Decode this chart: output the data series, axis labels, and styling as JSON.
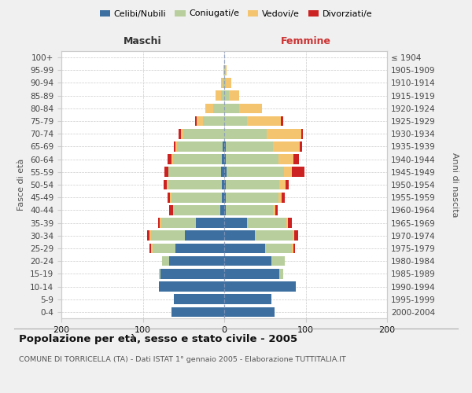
{
  "age_groups": [
    "100+",
    "95-99",
    "90-94",
    "85-89",
    "80-84",
    "75-79",
    "70-74",
    "65-69",
    "60-64",
    "55-59",
    "50-54",
    "45-49",
    "40-44",
    "35-39",
    "30-34",
    "25-29",
    "20-24",
    "15-19",
    "10-14",
    "5-9",
    "0-4"
  ],
  "birth_years": [
    "≤ 1904",
    "1905-1909",
    "1910-1914",
    "1915-1919",
    "1920-1924",
    "1925-1929",
    "1930-1934",
    "1935-1939",
    "1940-1944",
    "1945-1949",
    "1950-1954",
    "1955-1959",
    "1960-1964",
    "1965-1969",
    "1970-1974",
    "1975-1979",
    "1980-1984",
    "1985-1989",
    "1990-1994",
    "1995-1999",
    "2000-2004"
  ],
  "maschi": {
    "celibi": [
      0,
      0,
      0,
      0,
      0,
      0,
      0,
      2,
      3,
      4,
      3,
      3,
      5,
      35,
      48,
      60,
      68,
      78,
      80,
      62,
      65
    ],
    "coniugati": [
      0,
      0,
      2,
      4,
      14,
      26,
      50,
      56,
      60,
      65,
      66,
      62,
      58,
      42,
      42,
      28,
      8,
      2,
      0,
      0,
      0
    ],
    "vedovi": [
      0,
      1,
      2,
      7,
      9,
      8,
      3,
      2,
      2,
      0,
      2,
      2,
      0,
      2,
      2,
      2,
      0,
      0,
      0,
      0,
      0
    ],
    "divorziati": [
      0,
      0,
      0,
      0,
      0,
      2,
      3,
      2,
      5,
      4,
      3,
      3,
      5,
      2,
      3,
      2,
      0,
      0,
      0,
      0,
      0
    ]
  },
  "femmine": {
    "nubili": [
      0,
      0,
      0,
      0,
      0,
      0,
      0,
      2,
      2,
      3,
      2,
      2,
      2,
      28,
      38,
      50,
      58,
      68,
      88,
      58,
      62
    ],
    "coniugate": [
      0,
      1,
      2,
      6,
      18,
      28,
      52,
      58,
      65,
      70,
      66,
      65,
      58,
      48,
      46,
      33,
      16,
      4,
      0,
      0,
      0
    ],
    "vedove": [
      0,
      2,
      7,
      12,
      28,
      42,
      43,
      33,
      18,
      10,
      7,
      4,
      3,
      2,
      2,
      2,
      0,
      0,
      0,
      0,
      0
    ],
    "divorziate": [
      0,
      0,
      0,
      0,
      0,
      2,
      2,
      3,
      7,
      16,
      4,
      3,
      3,
      5,
      5,
      2,
      0,
      0,
      0,
      0,
      0
    ]
  },
  "colors": {
    "celibi_nubili": "#3d6fa0",
    "coniugati": "#b8cf9d",
    "vedovi": "#f5c46e",
    "divorziati": "#cc2222"
  },
  "title": "Popolazione per età, sesso e stato civile - 2005",
  "subtitle": "COMUNE DI TORRICELLA (TA) - Dati ISTAT 1° gennaio 2005 - Elaborazione TUTTITALIA.IT",
  "label_maschi": "Maschi",
  "label_femmine": "Femmine",
  "ylabel_left": "Fasce di età",
  "ylabel_right": "Anni di nascita",
  "xlim": 200,
  "background_color": "#f0f0f0",
  "plot_bg_color": "#ffffff",
  "grid_color": "#cccccc"
}
